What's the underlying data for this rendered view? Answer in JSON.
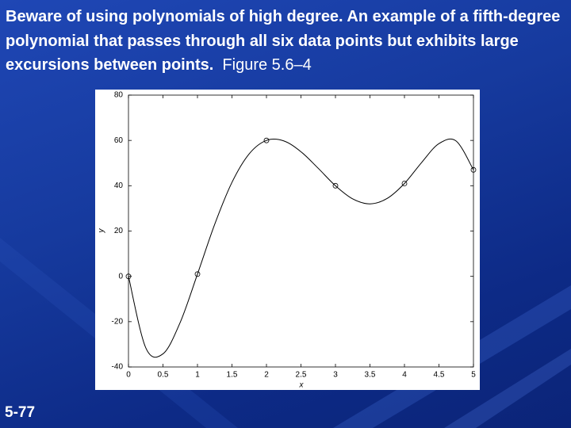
{
  "heading": {
    "bold": "Beware of using polynomials of high degree.  An example of a fifth-degree polynomial that passes through all six data points but exhibits large excursions between points.",
    "regular": "Figure 5.6–4"
  },
  "footer": "5-77",
  "chart_data": {
    "type": "line",
    "xlabel": "x",
    "ylabel": "y",
    "xlim": [
      0,
      5
    ],
    "ylim": [
      -40,
      80
    ],
    "xticks": [
      0,
      0.5,
      1,
      1.5,
      2,
      2.5,
      3,
      3.5,
      4,
      4.5,
      5
    ],
    "yticks": [
      -40,
      -20,
      0,
      20,
      40,
      60,
      80
    ],
    "series": [
      {
        "style": "line",
        "color": "#000000",
        "x": [
          0,
          0.25,
          0.5,
          0.75,
          1,
          1.25,
          1.5,
          1.75,
          2,
          2.25,
          2.5,
          2.75,
          3,
          3.25,
          3.5,
          3.75,
          4,
          4.25,
          4.5,
          4.75,
          5
        ],
        "values": [
          0,
          -31.5,
          -34.2,
          -20.3,
          1,
          23,
          41.5,
          54.1,
          60,
          59.8,
          55,
          47.7,
          40,
          34.2,
          32,
          34.4,
          41,
          50.3,
          58.6,
          59.7,
          47
        ]
      },
      {
        "style": "markers",
        "color": "#000000",
        "x": [
          0,
          1,
          2,
          3,
          4,
          5
        ],
        "values": [
          0,
          1,
          60,
          40,
          41,
          47
        ]
      }
    ]
  }
}
